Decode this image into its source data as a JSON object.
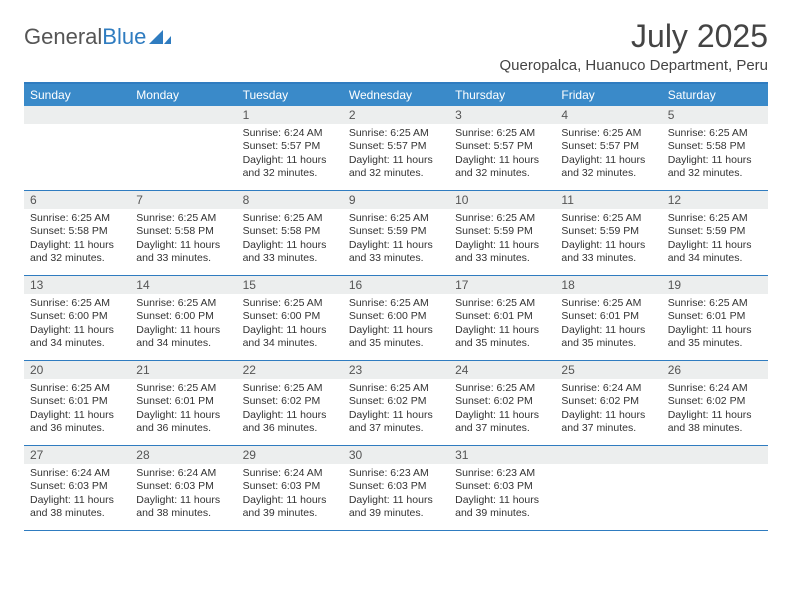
{
  "logo": {
    "text1": "General",
    "text2": "Blue"
  },
  "title": "July 2025",
  "location": "Queropalca, Huanuco Department, Peru",
  "colors": {
    "brand": "#3a8ac9",
    "rule": "#2f7cc0",
    "band": "#eceeee",
    "text": "#333333",
    "title": "#444444"
  },
  "daysOfWeek": [
    "Sunday",
    "Monday",
    "Tuesday",
    "Wednesday",
    "Thursday",
    "Friday",
    "Saturday"
  ],
  "weeks": [
    [
      {
        "n": "",
        "sunrise": "",
        "sunset": "",
        "daylight": ""
      },
      {
        "n": "",
        "sunrise": "",
        "sunset": "",
        "daylight": ""
      },
      {
        "n": "1",
        "sunrise": "Sunrise: 6:24 AM",
        "sunset": "Sunset: 5:57 PM",
        "daylight": "Daylight: 11 hours and 32 minutes."
      },
      {
        "n": "2",
        "sunrise": "Sunrise: 6:25 AM",
        "sunset": "Sunset: 5:57 PM",
        "daylight": "Daylight: 11 hours and 32 minutes."
      },
      {
        "n": "3",
        "sunrise": "Sunrise: 6:25 AM",
        "sunset": "Sunset: 5:57 PM",
        "daylight": "Daylight: 11 hours and 32 minutes."
      },
      {
        "n": "4",
        "sunrise": "Sunrise: 6:25 AM",
        "sunset": "Sunset: 5:57 PM",
        "daylight": "Daylight: 11 hours and 32 minutes."
      },
      {
        "n": "5",
        "sunrise": "Sunrise: 6:25 AM",
        "sunset": "Sunset: 5:58 PM",
        "daylight": "Daylight: 11 hours and 32 minutes."
      }
    ],
    [
      {
        "n": "6",
        "sunrise": "Sunrise: 6:25 AM",
        "sunset": "Sunset: 5:58 PM",
        "daylight": "Daylight: 11 hours and 32 minutes."
      },
      {
        "n": "7",
        "sunrise": "Sunrise: 6:25 AM",
        "sunset": "Sunset: 5:58 PM",
        "daylight": "Daylight: 11 hours and 33 minutes."
      },
      {
        "n": "8",
        "sunrise": "Sunrise: 6:25 AM",
        "sunset": "Sunset: 5:58 PM",
        "daylight": "Daylight: 11 hours and 33 minutes."
      },
      {
        "n": "9",
        "sunrise": "Sunrise: 6:25 AM",
        "sunset": "Sunset: 5:59 PM",
        "daylight": "Daylight: 11 hours and 33 minutes."
      },
      {
        "n": "10",
        "sunrise": "Sunrise: 6:25 AM",
        "sunset": "Sunset: 5:59 PM",
        "daylight": "Daylight: 11 hours and 33 minutes."
      },
      {
        "n": "11",
        "sunrise": "Sunrise: 6:25 AM",
        "sunset": "Sunset: 5:59 PM",
        "daylight": "Daylight: 11 hours and 33 minutes."
      },
      {
        "n": "12",
        "sunrise": "Sunrise: 6:25 AM",
        "sunset": "Sunset: 5:59 PM",
        "daylight": "Daylight: 11 hours and 34 minutes."
      }
    ],
    [
      {
        "n": "13",
        "sunrise": "Sunrise: 6:25 AM",
        "sunset": "Sunset: 6:00 PM",
        "daylight": "Daylight: 11 hours and 34 minutes."
      },
      {
        "n": "14",
        "sunrise": "Sunrise: 6:25 AM",
        "sunset": "Sunset: 6:00 PM",
        "daylight": "Daylight: 11 hours and 34 minutes."
      },
      {
        "n": "15",
        "sunrise": "Sunrise: 6:25 AM",
        "sunset": "Sunset: 6:00 PM",
        "daylight": "Daylight: 11 hours and 34 minutes."
      },
      {
        "n": "16",
        "sunrise": "Sunrise: 6:25 AM",
        "sunset": "Sunset: 6:00 PM",
        "daylight": "Daylight: 11 hours and 35 minutes."
      },
      {
        "n": "17",
        "sunrise": "Sunrise: 6:25 AM",
        "sunset": "Sunset: 6:01 PM",
        "daylight": "Daylight: 11 hours and 35 minutes."
      },
      {
        "n": "18",
        "sunrise": "Sunrise: 6:25 AM",
        "sunset": "Sunset: 6:01 PM",
        "daylight": "Daylight: 11 hours and 35 minutes."
      },
      {
        "n": "19",
        "sunrise": "Sunrise: 6:25 AM",
        "sunset": "Sunset: 6:01 PM",
        "daylight": "Daylight: 11 hours and 35 minutes."
      }
    ],
    [
      {
        "n": "20",
        "sunrise": "Sunrise: 6:25 AM",
        "sunset": "Sunset: 6:01 PM",
        "daylight": "Daylight: 11 hours and 36 minutes."
      },
      {
        "n": "21",
        "sunrise": "Sunrise: 6:25 AM",
        "sunset": "Sunset: 6:01 PM",
        "daylight": "Daylight: 11 hours and 36 minutes."
      },
      {
        "n": "22",
        "sunrise": "Sunrise: 6:25 AM",
        "sunset": "Sunset: 6:02 PM",
        "daylight": "Daylight: 11 hours and 36 minutes."
      },
      {
        "n": "23",
        "sunrise": "Sunrise: 6:25 AM",
        "sunset": "Sunset: 6:02 PM",
        "daylight": "Daylight: 11 hours and 37 minutes."
      },
      {
        "n": "24",
        "sunrise": "Sunrise: 6:25 AM",
        "sunset": "Sunset: 6:02 PM",
        "daylight": "Daylight: 11 hours and 37 minutes."
      },
      {
        "n": "25",
        "sunrise": "Sunrise: 6:24 AM",
        "sunset": "Sunset: 6:02 PM",
        "daylight": "Daylight: 11 hours and 37 minutes."
      },
      {
        "n": "26",
        "sunrise": "Sunrise: 6:24 AM",
        "sunset": "Sunset: 6:02 PM",
        "daylight": "Daylight: 11 hours and 38 minutes."
      }
    ],
    [
      {
        "n": "27",
        "sunrise": "Sunrise: 6:24 AM",
        "sunset": "Sunset: 6:03 PM",
        "daylight": "Daylight: 11 hours and 38 minutes."
      },
      {
        "n": "28",
        "sunrise": "Sunrise: 6:24 AM",
        "sunset": "Sunset: 6:03 PM",
        "daylight": "Daylight: 11 hours and 38 minutes."
      },
      {
        "n": "29",
        "sunrise": "Sunrise: 6:24 AM",
        "sunset": "Sunset: 6:03 PM",
        "daylight": "Daylight: 11 hours and 39 minutes."
      },
      {
        "n": "30",
        "sunrise": "Sunrise: 6:23 AM",
        "sunset": "Sunset: 6:03 PM",
        "daylight": "Daylight: 11 hours and 39 minutes."
      },
      {
        "n": "31",
        "sunrise": "Sunrise: 6:23 AM",
        "sunset": "Sunset: 6:03 PM",
        "daylight": "Daylight: 11 hours and 39 minutes."
      },
      {
        "n": "",
        "sunrise": "",
        "sunset": "",
        "daylight": ""
      },
      {
        "n": "",
        "sunrise": "",
        "sunset": "",
        "daylight": ""
      }
    ]
  ]
}
